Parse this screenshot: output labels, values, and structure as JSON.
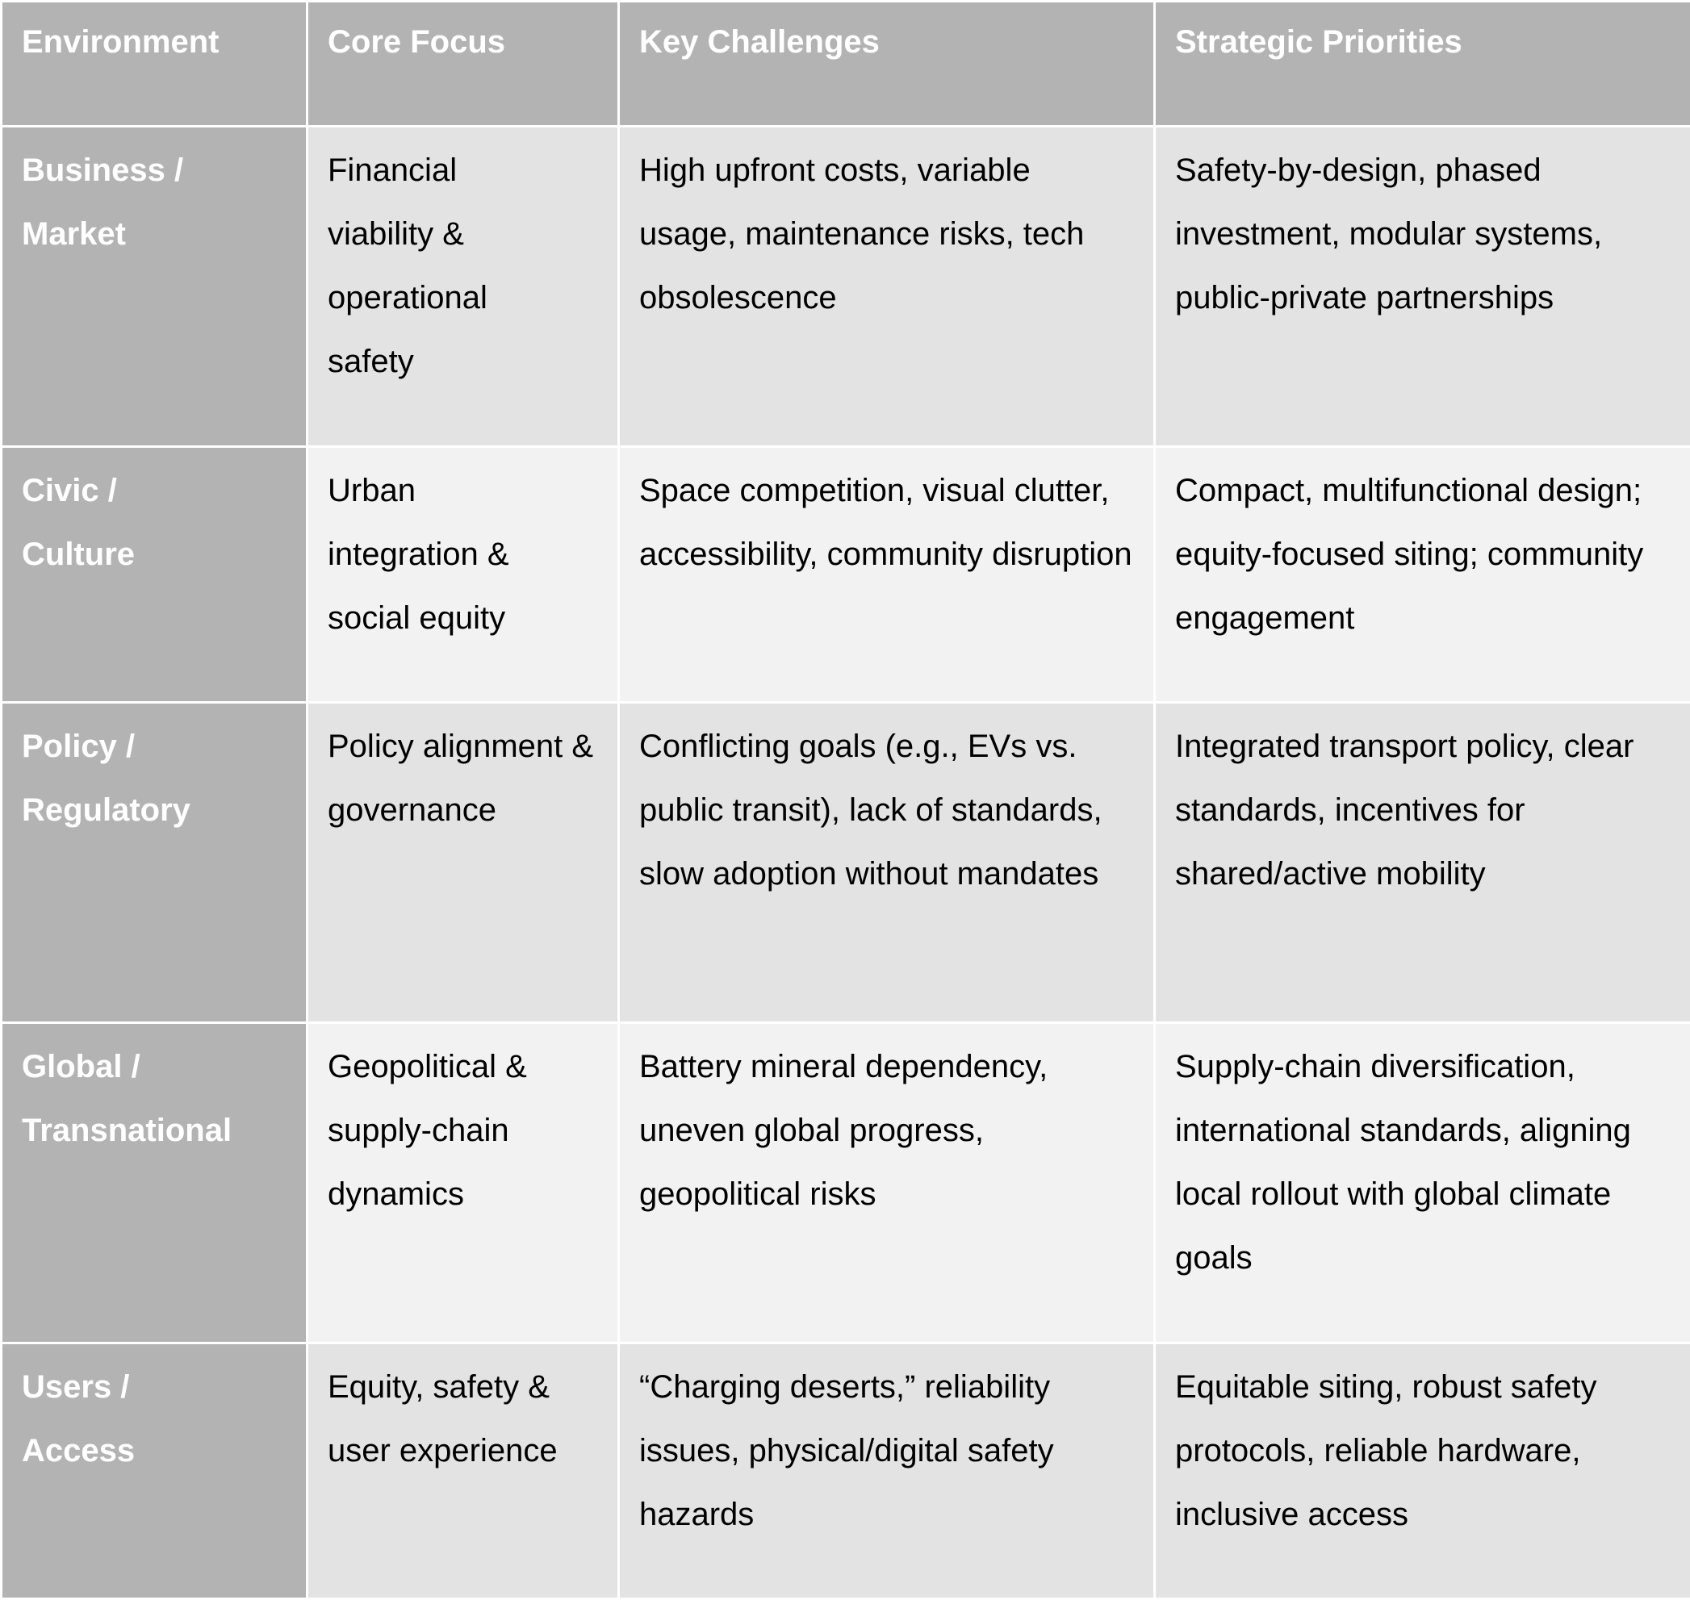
{
  "table": {
    "headers": [
      "Environment",
      "Core Focus",
      "Key Challenges",
      "Strategic Priorities"
    ],
    "rows": [
      {
        "environment": "Business / Market",
        "core_focus": "Financial viability & operational safety",
        "key_challenges": "High upfront costs, variable usage, maintenance risks, tech obsolescence",
        "strategic_priorities": "Safety-by-design, phased investment, modular systems, public-private partnerships"
      },
      {
        "environment": "Civic / Culture",
        "core_focus": "Urban integration & social equity",
        "key_challenges": "Space competition, visual clutter, accessibility, community disruption",
        "strategic_priorities": "Compact, multifunctional design; equity-focused siting; community engagement"
      },
      {
        "environment": "Policy / Regulatory",
        "core_focus": "Policy alignment & governance",
        "key_challenges": "Conflicting goals (e.g., EVs vs. public transit), lack of standards, slow adoption without mandates",
        "strategic_priorities": "Integrated transport policy, clear standards, incentives for shared/active mobility"
      },
      {
        "environment": "Global / Transnational",
        "core_focus": "Geopolitical & supply-chain dynamics",
        "key_challenges": "Battery mineral dependency, uneven global progress, geopolitical risks",
        "strategic_priorities": "Supply-chain diversification, international standards, aligning local rollout with global climate goals"
      },
      {
        "environment": "Users / Access",
        "core_focus": "Equity, safety & user experience",
        "key_challenges": "“Charging deserts,” reliability issues, physical/digital safety hazards",
        "strategic_priorities": "Equitable siting, robust safety protocols, reliable hardware, inclusive access"
      }
    ]
  },
  "colors": {
    "header_bg": "#b3b3b3",
    "row_odd_bg": "#e3e3e3",
    "row_even_bg": "#f2f2f2",
    "header_text": "#ffffff"
  }
}
